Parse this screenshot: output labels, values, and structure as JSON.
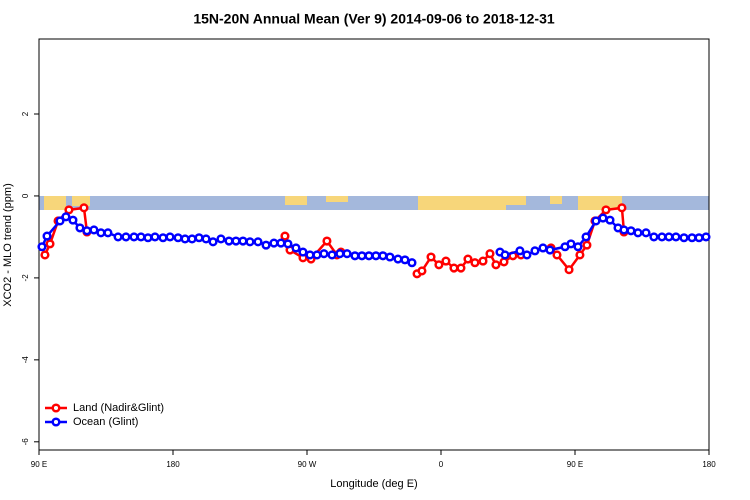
{
  "chart_data": {
    "type": "line",
    "title": "15N-20N Annual Mean (Ver 9)   2014-09-06 to 2018-12-31",
    "x_label": "Longitude (deg E)",
    "y_label": "XCO2 - MLO trend (ppm)",
    "xlim": [
      90,
      540
    ],
    "ylim": [
      -6.2,
      3.83
    ],
    "xticks": [
      {
        "value": 90,
        "label": "90 E"
      },
      {
        "value": 180,
        "label": "180"
      },
      {
        "value": 270,
        "label": "90 W"
      },
      {
        "value": 360,
        "label": "0"
      },
      {
        "value": 450,
        "label": "90 E"
      },
      {
        "value": 540,
        "label": "180"
      }
    ],
    "yticks": [
      -6,
      -4,
      -2,
      0,
      2
    ],
    "legend": "bottom-left",
    "series": [
      {
        "name": "Land (Nadir&Glint)",
        "color": "#ff0000",
        "x": [
          94.0,
          97.4,
          102.8,
          110.1,
          120.2,
          122.2,
          200,
          255.2,
          258.6,
          267.3,
          272.7,
          283.4,
          290.1,
          292.8,
          350,
          343.9,
          347.2,
          353.3,
          358.6,
          363.3,
          368.7,
          373.4,
          378.1,
          382.8,
          388.2,
          392.9,
          396.9,
          402.3,
          408.3,
          413.7,
          430,
          433.9,
          437.9,
          446.0,
          453.3,
          458.0,
          463.4,
          470.8,
          481.5,
          482.9
        ],
        "values": [
          -1.44,
          -1.17,
          -0.61,
          -0.34,
          -0.29,
          -0.88,
          null,
          -0.98,
          -1.32,
          -1.51,
          -1.54,
          -1.1,
          -1.44,
          -1.37,
          null,
          -1.9,
          -1.83,
          -1.49,
          -1.68,
          -1.59,
          -1.76,
          -1.76,
          -1.54,
          -1.63,
          -1.59,
          -1.41,
          -1.68,
          -1.61,
          -1.46,
          -1.44,
          null,
          -1.27,
          -1.44,
          -1.8,
          -1.44,
          -1.2,
          -0.61,
          -0.34,
          -0.29,
          -0.88
        ]
      },
      {
        "name": "Ocean (Glint)",
        "color": "#0000ff",
        "x": [
          92.0,
          95.4,
          104.1,
          108.1,
          112.8,
          117.5,
          122.2,
          126.9,
          131.6,
          136.3,
          143.1,
          148.4,
          153.8,
          158.5,
          163.2,
          167.9,
          173.3,
          178.0,
          183.4,
          188.1,
          192.8,
          197.5,
          202.2,
          206.9,
          212.2,
          217.6,
          222.3,
          227.0,
          231.7,
          237.1,
          242.5,
          247.8,
          252.5,
          257.2,
          262.6,
          267.3,
          272.0,
          276.7,
          281.4,
          286.8,
          292.1,
          296.9,
          302.2,
          306.9,
          311.6,
          316.3,
          321.0,
          325.7,
          331.1,
          335.8,
          340.5,
          370,
          399.6,
          403.0,
          413.0,
          417.7,
          423.1,
          428.5,
          433.2,
          443.3,
          447.3,
          452.0,
          457.4,
          464.1,
          468.8,
          473.5,
          478.9,
          482.9,
          487.6,
          492.3,
          497.7,
          503.0,
          508.4,
          513.1,
          517.8,
          523.2,
          528.6,
          533.3,
          538.0
        ],
        "values": [
          -1.24,
          -0.98,
          -0.61,
          -0.51,
          -0.59,
          -0.78,
          -0.85,
          -0.83,
          -0.9,
          -0.9,
          -1.0,
          -1.0,
          -1.0,
          -1.0,
          -1.02,
          -1.0,
          -1.02,
          -1.0,
          -1.02,
          -1.05,
          -1.05,
          -1.02,
          -1.05,
          -1.12,
          -1.05,
          -1.1,
          -1.1,
          -1.1,
          -1.12,
          -1.12,
          -1.2,
          -1.15,
          -1.15,
          -1.17,
          -1.27,
          -1.37,
          -1.44,
          -1.44,
          -1.41,
          -1.44,
          -1.41,
          -1.41,
          -1.46,
          -1.46,
          -1.46,
          -1.46,
          -1.46,
          -1.49,
          -1.54,
          -1.56,
          -1.63,
          null,
          -1.37,
          -1.44,
          -1.34,
          -1.44,
          -1.34,
          -1.27,
          -1.32,
          -1.24,
          -1.17,
          -1.24,
          -1.0,
          -0.61,
          -0.54,
          -0.59,
          -0.78,
          -0.83,
          -0.85,
          -0.9,
          -0.9,
          -1.0,
          -1.0,
          -1.0,
          -1.0,
          -1.02,
          -1.02,
          -1.02,
          -1.0
        ]
      }
    ]
  }
}
